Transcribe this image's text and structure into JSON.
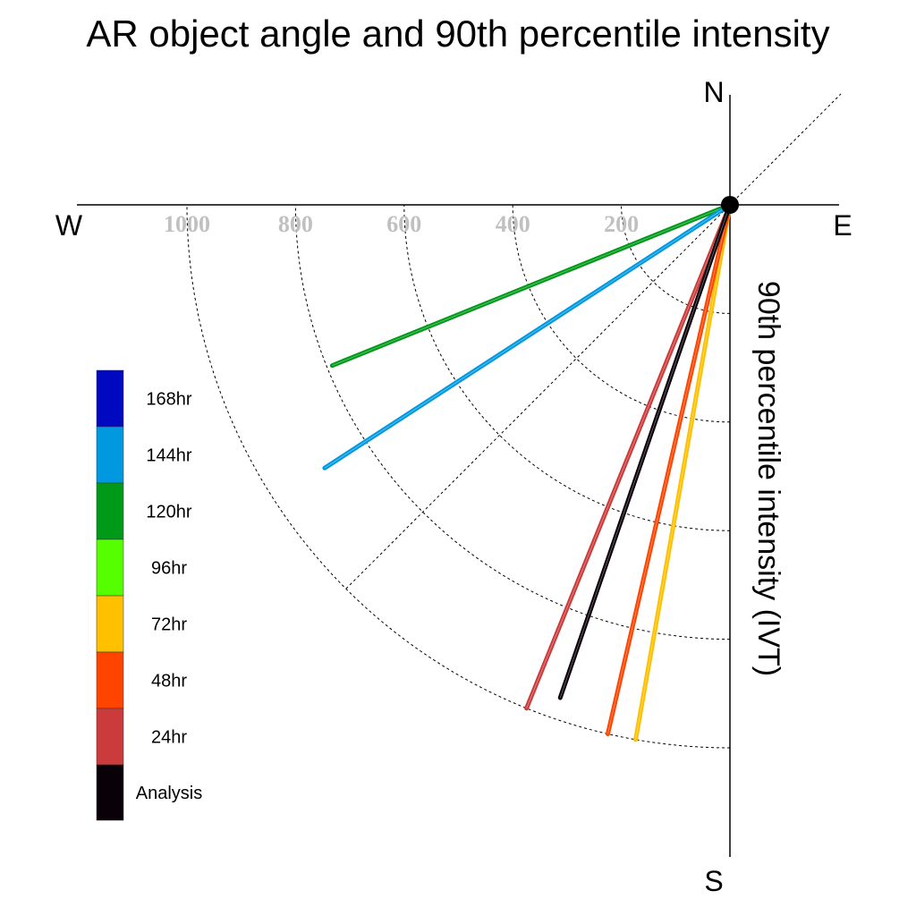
{
  "chart_data": {
    "type": "polar-vector",
    "title": "AR object angle and 90th percentile intensity",
    "radial_label": "90th percentile intensity (IVT)",
    "compass": {
      "north": "N",
      "south": "S",
      "east": "E",
      "west": "W"
    },
    "radial_ticks": [
      200,
      400,
      600,
      800,
      1000
    ],
    "radial_range": [
      0,
      1000
    ],
    "series": [
      {
        "name": "Analysis",
        "color": "#0a0008",
        "value": 960,
        "direction_deg": 199
      },
      {
        "name": "24hr",
        "color": "#cc3b3b",
        "value": 1000,
        "direction_deg": 202
      },
      {
        "name": "48hr",
        "color": "#ff4400",
        "value": 1000,
        "direction_deg": 193
      },
      {
        "name": "72hr",
        "color": "#ffc000",
        "value": 1000,
        "direction_deg": 190
      },
      {
        "name": "96hr",
        "color": "#55ff00",
        "value": null,
        "direction_deg": null
      },
      {
        "name": "120hr",
        "color": "#009a18",
        "value": 790,
        "direction_deg": 248
      },
      {
        "name": "144hr",
        "color": "#0099e0",
        "value": 890,
        "direction_deg": 237
      },
      {
        "name": "168hr",
        "color": "#0008c0",
        "value": null,
        "direction_deg": null
      }
    ],
    "legend_order": [
      "168hr",
      "144hr",
      "120hr",
      "96hr",
      "72hr",
      "48hr",
      "24hr",
      "Analysis"
    ],
    "legend_position": "left"
  }
}
